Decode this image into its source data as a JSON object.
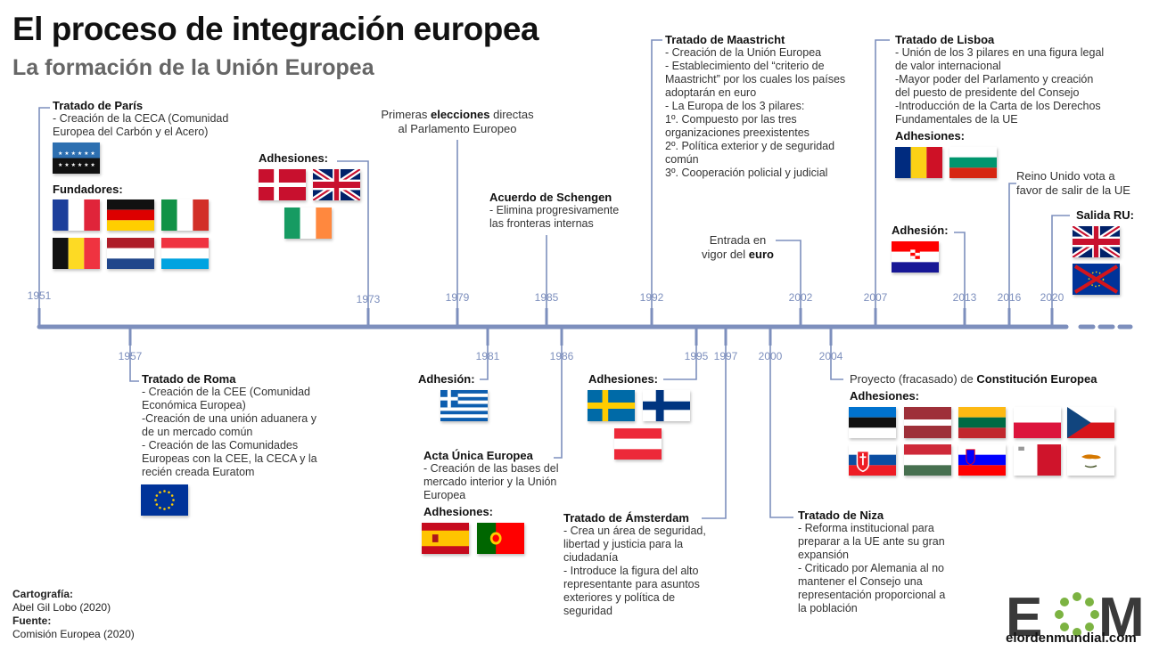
{
  "header": {
    "title": "El proceso de integración europea",
    "subtitle": "La formación de la Unión Europea"
  },
  "colors": {
    "timeline": "#7d8fbd",
    "year_text": "#7d8fbd",
    "eu_blue": "#003399",
    "eu_gold": "#ffcc00"
  },
  "chart_data": {
    "type": "timeline",
    "years": [
      1951,
      1957,
      1973,
      1979,
      1981,
      1985,
      1986,
      1992,
      1995,
      1997,
      2000,
      2002,
      2004,
      2007,
      2013,
      2016,
      2020
    ]
  },
  "labels": {
    "adhesion": "Adhesión:",
    "adhesiones": "Adhesiones:",
    "fundadores": "Fundadores:",
    "salida": "Salida RU:"
  },
  "events": {
    "paris": {
      "title": "Tratado de París",
      "lines": [
        "- Creación de la CECA (Comunidad",
        "Europea del Carbón y el Acero)"
      ]
    },
    "roma": {
      "title": "Tratado de Roma",
      "lines": [
        "- Creación de la CEE (Comunidad",
        "Económica Europea)",
        "-Creación de una unión aduanera y",
        "de un mercado común",
        "- Creación de las Comunidades",
        "Europeas con la CEE, la CECA y la",
        "recién creada Euratom"
      ]
    },
    "elecciones": {
      "pre": "Primeras ",
      "bold": "elecciones",
      "post": " directas",
      "line2": "al Parlamento Europeo"
    },
    "schengen": {
      "title": "Acuerdo de Schengen",
      "lines": [
        "- Elimina progresivamente",
        "las fronteras internas"
      ]
    },
    "acta": {
      "title": "Acta Única Europea",
      "lines": [
        "- Creación de las bases del",
        "mercado interior y la Unión",
        "Europea"
      ]
    },
    "maastricht": {
      "title": "Tratado de Maastricht",
      "lines": [
        "- Creación de la Unión Europea",
        "- Establecimiento del “criterio de",
        "Maastricht” por los cuales los países",
        "adoptarán en euro",
        "- La Europa de los 3 pilares:",
        "  1º. Compuesto por las tres",
        "organizaciones preexistentes",
        "  2º. Política exterior y de seguridad",
        "común",
        "  3º. Cooperación policial y judicial"
      ]
    },
    "amsterdam": {
      "title": "Tratado de Ámsterdam",
      "lines": [
        "- Crea un área de seguridad,",
        "libertad y justicia para la",
        "ciudadanía",
        "- Introduce la figura del alto",
        "representante para asuntos",
        "exteriores y política de",
        "seguridad"
      ]
    },
    "niza": {
      "title": "Tratado de Niza",
      "lines": [
        "- Reforma institucional para",
        "preparar a la UE ante su gran",
        "expansión",
        "- Criticado por Alemania al no",
        "mantener el Consejo una",
        "representación proporcional a",
        "la población"
      ]
    },
    "euro": {
      "pre": "Entrada en",
      "line2pre": "vigor del ",
      "bold": "euro"
    },
    "constitucion": {
      "pre": "Proyecto (fracasado) de ",
      "bold": "Constitución Europea"
    },
    "lisboa": {
      "title": "Tratado de Lisboa",
      "lines": [
        "- Unión de los 3 pilares en una figura legal",
        "de valor internacional",
        "-Mayor poder del Parlamento y creación",
        "del puesto de presidente del Consejo",
        "-Introducción de la Carta de los Derechos",
        "Fundamentales de la UE"
      ]
    },
    "brexit": {
      "line1": "Reino Unido vota a",
      "line2": "favor de salir de la UE"
    }
  },
  "credits": {
    "label1": "Cartografía:",
    "value1": "Abel Gil Lobo (2020)",
    "label2": "Fuente:",
    "value2": "Comisión Europea (2020)"
  },
  "logo": {
    "letters": "EOM",
    "site": "elordenmundial.com"
  }
}
